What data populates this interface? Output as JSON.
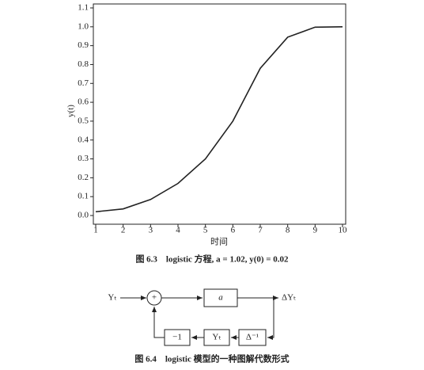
{
  "chart_data": {
    "type": "line",
    "x_label": "时间",
    "y_label": "y(t)",
    "x": [
      1,
      2,
      3,
      4,
      5,
      6,
      7,
      8,
      9,
      10
    ],
    "values": [
      0.02,
      0.035,
      0.085,
      0.17,
      0.3,
      0.5,
      0.78,
      0.945,
      0.998,
      1.0
    ],
    "color": "#222222",
    "xlim": [
      1,
      10
    ],
    "xticks": [
      1,
      2,
      3,
      4,
      5,
      6,
      7,
      8,
      9,
      10
    ],
    "ylim": [
      0,
      1.1
    ],
    "yticks": [
      {
        "value": 0,
        "label": "0.0"
      },
      0.1,
      0.2,
      0.3,
      0.4,
      0.5,
      0.6,
      0.7,
      0.8,
      0.9,
      {
        "value": 1,
        "label": "1.0"
      },
      1.1
    ],
    "grid": false
  },
  "captions": [
    "图 6.3　logistic 方程, a = 1.02, y(0) = 0.02",
    "图 6.4　logistic 模型的一种图解代数形式"
  ],
  "diagram": {
    "input": "Yₜ",
    "sum": "+",
    "forward": "a",
    "output": "ΔYₜ",
    "feedback": [
      "−1",
      "Yₜ",
      "Δ⁻¹"
    ]
  }
}
